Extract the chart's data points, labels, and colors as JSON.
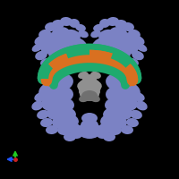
{
  "bg_color": "#000000",
  "fig_width": 2.0,
  "fig_height": 2.0,
  "dpi": 100,
  "protein_color": "#7b82c4",
  "protein_color_dark": "#6068a8",
  "dna_green": "#1faa6e",
  "dna_orange": "#d97020",
  "center_gray": "#909090",
  "center_gray2": "#707070",
  "axis_green": "#22cc22",
  "axis_blue": "#2255ff",
  "axis_red": "#cc2222"
}
